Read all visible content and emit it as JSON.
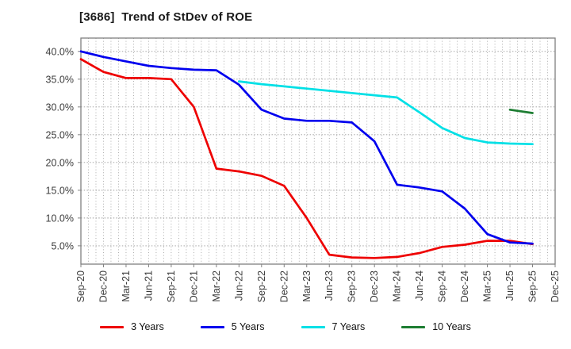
{
  "header": {
    "title": "[3686]  Trend of StDev of ROE"
  },
  "colors": {
    "series_red": "#ee0000",
    "series_blue": "#0000ee",
    "series_cyan": "#00e0e6",
    "series_green": "#1d7d32",
    "grid": "#9a9a9a",
    "axis_border": "#808080",
    "tick_text": "#3c3c3c",
    "title_text": "#1a1a1a",
    "background": "#ffffff"
  },
  "chart_data": {
    "type": "line",
    "title": "[3686]  Trend of StDev of ROE",
    "xlabel": "",
    "ylabel": "",
    "grid": "dotted, monthly vertical + 5% horizontal",
    "legend_position": "bottom",
    "ylim": [
      1.7,
      42.4
    ],
    "y_ticks": [
      {
        "value": 40,
        "label": "40.0%"
      },
      {
        "value": 35,
        "label": "35.0%"
      },
      {
        "value": 30,
        "label": "30.0%"
      },
      {
        "value": 25,
        "label": "25.0%"
      },
      {
        "value": 20,
        "label": "20.0%"
      },
      {
        "value": 15,
        "label": "15.0%"
      },
      {
        "value": 10,
        "label": "10.0%"
      },
      {
        "value": 5,
        "label": "5.0%"
      }
    ],
    "categories": [
      "Sep-20",
      "Dec-20",
      "Mar-21",
      "Jun-21",
      "Sep-21",
      "Dec-21",
      "Mar-22",
      "Jun-22",
      "Sep-22",
      "Dec-22",
      "Mar-23",
      "Jun-23",
      "Sep-23",
      "Dec-23",
      "Mar-24",
      "Jun-24",
      "Sep-24",
      "Dec-24",
      "Mar-25",
      "Jun-25",
      "Sep-25",
      "Dec-25"
    ],
    "series": [
      {
        "name": "3 Years",
        "color": "#ee0000",
        "values": [
          38.6,
          36.3,
          35.2,
          35.2,
          35.0,
          30.0,
          18.9,
          18.4,
          17.6,
          15.8,
          10.0,
          3.4,
          2.9,
          2.8,
          3.0,
          3.7,
          4.8,
          5.2,
          5.9,
          5.9,
          5.3,
          null
        ]
      },
      {
        "name": "5 Years",
        "color": "#0000ee",
        "values": [
          40.0,
          39.0,
          38.2,
          37.4,
          37.0,
          36.7,
          36.6,
          34.0,
          29.5,
          27.9,
          27.5,
          27.5,
          27.2,
          23.8,
          16.0,
          15.5,
          14.8,
          11.7,
          7.1,
          5.6,
          5.4,
          null
        ]
      },
      {
        "name": "7 Years",
        "color": "#00e0e6",
        "values": [
          null,
          null,
          null,
          null,
          null,
          null,
          null,
          34.6,
          34.1,
          33.7,
          33.3,
          32.9,
          32.5,
          32.1,
          31.7,
          29.0,
          26.2,
          24.4,
          23.6,
          23.4,
          23.3,
          null
        ]
      },
      {
        "name": "10 Years",
        "color": "#1d7d32",
        "values": [
          null,
          null,
          null,
          null,
          null,
          null,
          null,
          null,
          null,
          null,
          null,
          null,
          null,
          null,
          null,
          null,
          null,
          null,
          null,
          29.5,
          28.9,
          null
        ]
      }
    ]
  }
}
